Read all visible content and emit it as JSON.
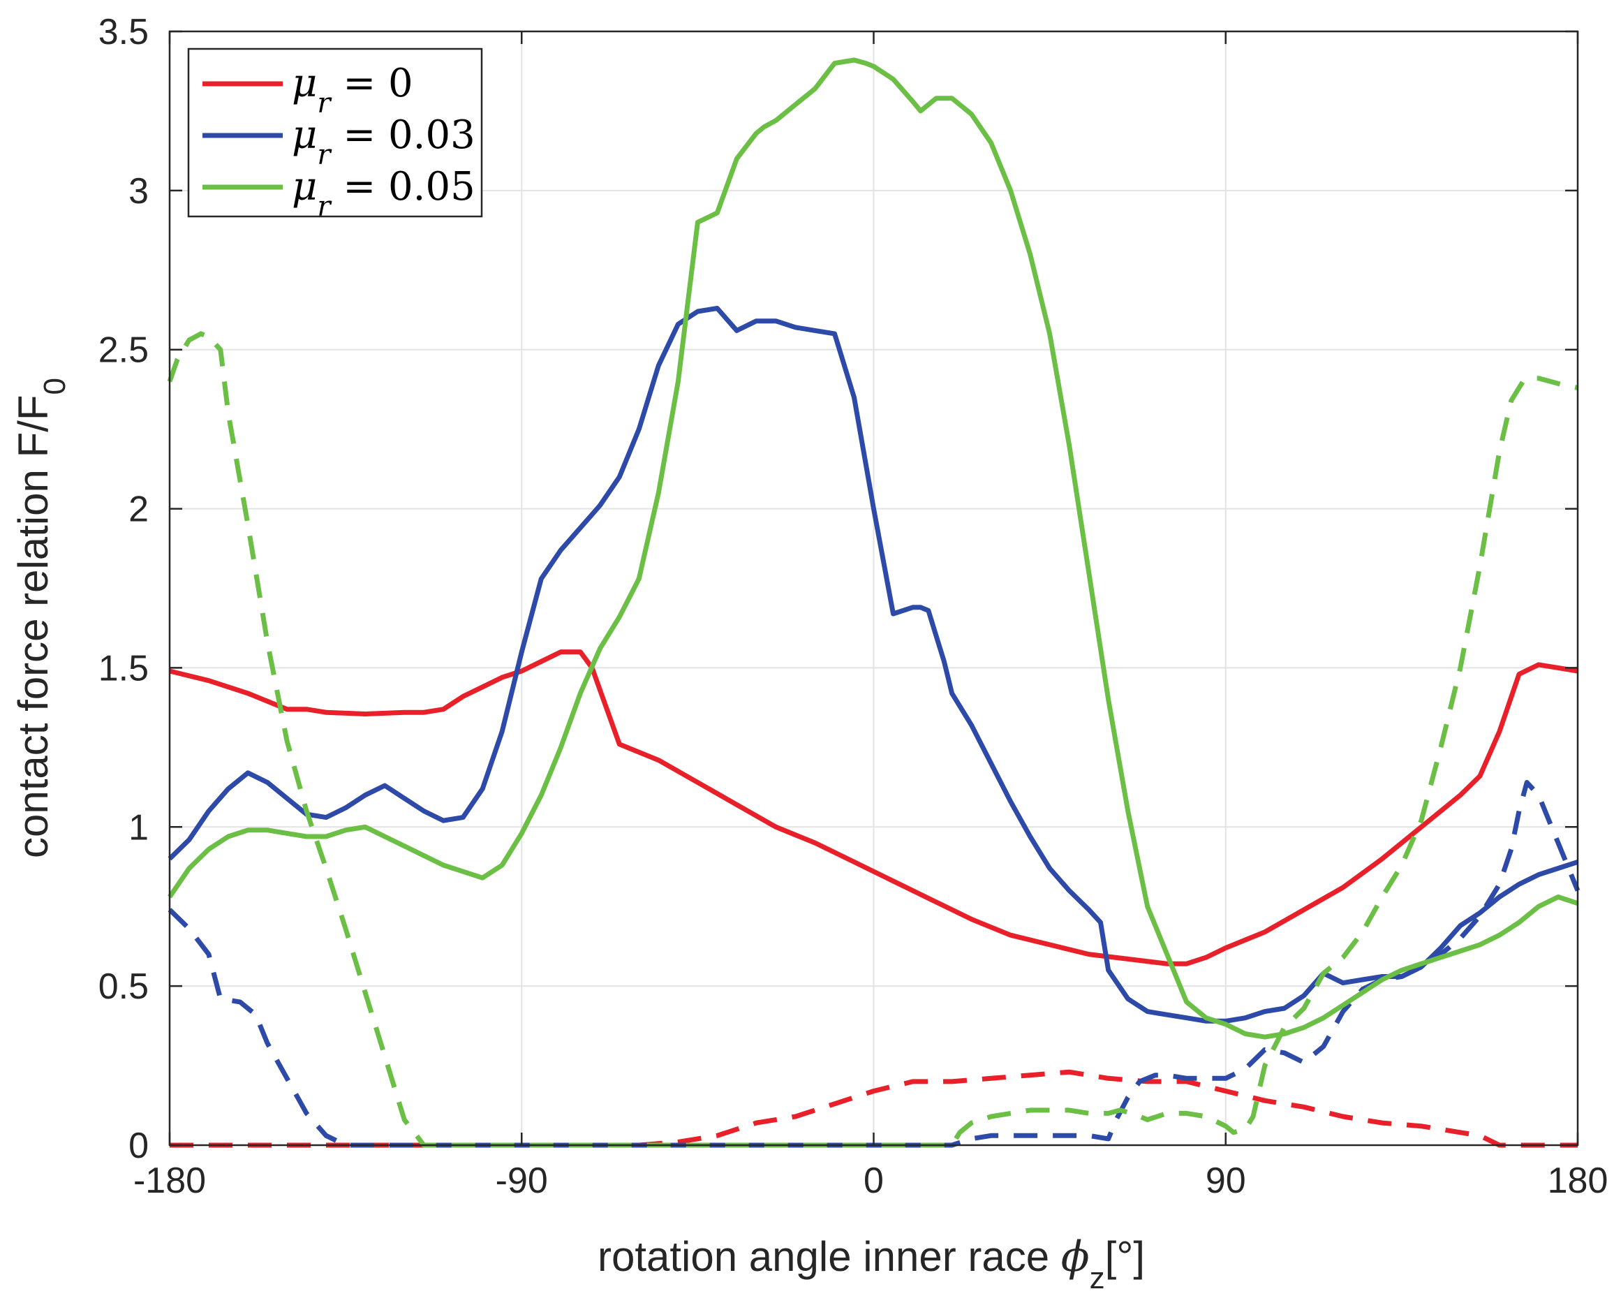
{
  "chart_data": {
    "type": "line",
    "title": "",
    "xlabel": "rotation angle inner race",
    "xlabel_symbol": "ϕ",
    "xlabel_subscript": "z",
    "xlabel_unit": "[°]",
    "ylabel": "contact force relation F/F",
    "ylabel_subscript": "0",
    "xlim": [
      -180,
      180
    ],
    "ylim": [
      0,
      3.5
    ],
    "xticks": [
      -180,
      -90,
      0,
      90,
      180
    ],
    "xtick_labels": [
      "-180",
      "-90",
      "0",
      "90",
      "180"
    ],
    "yticks": [
      0,
      0.5,
      1,
      1.5,
      2,
      2.5,
      3,
      3.5
    ],
    "ytick_labels": [
      "0",
      "0.5",
      "1",
      "1.5",
      "2",
      "2.5",
      "3",
      "3.5"
    ],
    "grid": true,
    "legend_position": "top-left",
    "legend": [
      {
        "label_symbol": "μ",
        "label_sub": "r",
        "label_rest": " = 0",
        "color": "#e8202a"
      },
      {
        "label_symbol": "μ",
        "label_sub": "r",
        "label_rest": " = 0.03",
        "color": "#2e4aa8"
      },
      {
        "label_symbol": "μ",
        "label_sub": "r",
        "label_rest": " = 0.05",
        "color": "#6cbf45"
      }
    ],
    "series": [
      {
        "name": "mu_r = 0 (solid)",
        "color": "#e8202a",
        "dash": false,
        "x": [
          -180,
          -170,
          -160,
          -150,
          -145,
          -140,
          -130,
          -120,
          -115,
          -110,
          -105,
          -100,
          -95,
          -90,
          -85,
          -80,
          -75,
          -72,
          -65,
          -55,
          -45,
          -35,
          -25,
          -15,
          -5,
          5,
          15,
          25,
          35,
          45,
          55,
          65,
          75,
          80,
          85,
          90,
          100,
          110,
          120,
          130,
          140,
          150,
          155,
          160,
          165,
          170,
          175,
          180
        ],
        "y": [
          1.49,
          1.46,
          1.42,
          1.37,
          1.37,
          1.36,
          1.355,
          1.36,
          1.36,
          1.37,
          1.41,
          1.44,
          1.47,
          1.49,
          1.52,
          1.55,
          1.55,
          1.5,
          1.26,
          1.21,
          1.14,
          1.07,
          1.0,
          0.95,
          0.89,
          0.83,
          0.77,
          0.71,
          0.66,
          0.63,
          0.6,
          0.585,
          0.57,
          0.57,
          0.59,
          0.62,
          0.67,
          0.74,
          0.81,
          0.9,
          1.0,
          1.1,
          1.16,
          1.3,
          1.48,
          1.51,
          1.5,
          1.49
        ]
      },
      {
        "name": "mu_r = 0 (dashed)",
        "color": "#e8202a",
        "dash": true,
        "x": [
          -180,
          -60,
          -50,
          -40,
          -30,
          -20,
          -15,
          -10,
          -5,
          0,
          10,
          20,
          30,
          40,
          50,
          60,
          70,
          80,
          90,
          100,
          110,
          120,
          130,
          140,
          150,
          155,
          160,
          165,
          170,
          175,
          180
        ],
        "y": [
          0,
          0,
          0.01,
          0.03,
          0.07,
          0.09,
          0.11,
          0.13,
          0.15,
          0.17,
          0.2,
          0.2,
          0.21,
          0.22,
          0.23,
          0.21,
          0.2,
          0.2,
          0.17,
          0.14,
          0.12,
          0.09,
          0.07,
          0.06,
          0.04,
          0.03,
          0,
          0,
          0,
          0,
          0
        ]
      },
      {
        "name": "mu_r = 0.03 (solid)",
        "color": "#2e4aa8",
        "dash": false,
        "x": [
          -180,
          -175,
          -170,
          -165,
          -160,
          -155,
          -150,
          -145,
          -140,
          -135,
          -130,
          -125,
          -120,
          -115,
          -110,
          -105,
          -100,
          -95,
          -90,
          -85,
          -80,
          -75,
          -70,
          -65,
          -60,
          -55,
          -50,
          -45,
          -40,
          -35,
          -30,
          -25,
          -20,
          -15,
          -10,
          -5,
          0,
          5,
          10,
          12,
          14,
          16,
          18,
          20,
          25,
          30,
          35,
          40,
          45,
          50,
          55,
          58,
          60,
          65,
          70,
          75,
          80,
          85,
          90,
          95,
          100,
          105,
          110,
          115,
          120,
          125,
          130,
          135,
          140,
          145,
          150,
          155,
          160,
          165,
          170,
          175,
          180
        ],
        "y": [
          0.9,
          0.96,
          1.05,
          1.12,
          1.17,
          1.14,
          1.09,
          1.04,
          1.03,
          1.06,
          1.1,
          1.13,
          1.09,
          1.05,
          1.02,
          1.03,
          1.12,
          1.3,
          1.55,
          1.78,
          1.87,
          1.94,
          2.01,
          2.1,
          2.25,
          2.45,
          2.58,
          2.62,
          2.63,
          2.56,
          2.59,
          2.59,
          2.57,
          2.56,
          2.55,
          2.35,
          2.0,
          1.67,
          1.69,
          1.69,
          1.68,
          1.6,
          1.52,
          1.42,
          1.32,
          1.2,
          1.08,
          0.97,
          0.87,
          0.8,
          0.74,
          0.7,
          0.55,
          0.46,
          0.42,
          0.41,
          0.4,
          0.39,
          0.39,
          0.4,
          0.42,
          0.43,
          0.47,
          0.54,
          0.51,
          0.52,
          0.53,
          0.53,
          0.56,
          0.62,
          0.69,
          0.73,
          0.78,
          0.82,
          0.85,
          0.87,
          0.89
        ]
      },
      {
        "name": "mu_r = 0.03 (dashed)",
        "color": "#2e4aa8",
        "dash": true,
        "x": [
          -180,
          -175,
          -170,
          -167,
          -162,
          -158,
          -155,
          -150,
          -145,
          -140,
          -135,
          -40,
          20,
          25,
          30,
          40,
          50,
          55,
          60,
          62,
          65,
          68,
          72,
          75,
          80,
          85,
          90,
          95,
          100,
          105,
          110,
          115,
          120,
          125,
          130,
          135,
          140,
          145,
          150,
          155,
          160,
          163,
          165,
          167,
          170,
          175,
          180
        ],
        "y": [
          0.74,
          0.68,
          0.6,
          0.46,
          0.45,
          0.41,
          0.32,
          0.21,
          0.1,
          0.03,
          0,
          0,
          0,
          0.02,
          0.03,
          0.03,
          0.03,
          0.03,
          0.02,
          0.08,
          0.15,
          0.2,
          0.22,
          0.22,
          0.21,
          0.21,
          0.21,
          0.24,
          0.3,
          0.29,
          0.26,
          0.31,
          0.42,
          0.49,
          0.52,
          0.53,
          0.56,
          0.6,
          0.65,
          0.72,
          0.82,
          0.93,
          1.05,
          1.14,
          1.1,
          0.95,
          0.8
        ]
      },
      {
        "name": "mu_r = 0.05 (solid)",
        "color": "#6cbf45",
        "dash": false,
        "x": [
          -180,
          -175,
          -170,
          -165,
          -160,
          -155,
          -150,
          -145,
          -140,
          -135,
          -130,
          -125,
          -120,
          -115,
          -110,
          -105,
          -100,
          -95,
          -90,
          -85,
          -80,
          -75,
          -70,
          -65,
          -60,
          -55,
          -50,
          -45,
          -40,
          -35,
          -30,
          -28,
          -25,
          -20,
          -15,
          -10,
          -5,
          -2,
          0,
          5,
          10,
          12,
          14,
          16,
          18,
          20,
          25,
          30,
          35,
          40,
          45,
          50,
          55,
          60,
          65,
          70,
          75,
          80,
          85,
          90,
          95,
          100,
          105,
          110,
          115,
          120,
          125,
          130,
          135,
          140,
          145,
          150,
          155,
          160,
          165,
          170,
          175,
          180
        ],
        "y": [
          0.78,
          0.87,
          0.93,
          0.97,
          0.99,
          0.99,
          0.98,
          0.97,
          0.97,
          0.99,
          1.0,
          0.97,
          0.94,
          0.91,
          0.88,
          0.86,
          0.84,
          0.88,
          0.98,
          1.1,
          1.25,
          1.42,
          1.56,
          1.66,
          1.78,
          2.05,
          2.4,
          2.9,
          2.93,
          3.1,
          3.18,
          3.2,
          3.22,
          3.27,
          3.32,
          3.4,
          3.41,
          3.4,
          3.39,
          3.35,
          3.28,
          3.25,
          3.27,
          3.29,
          3.29,
          3.29,
          3.24,
          3.15,
          3.0,
          2.8,
          2.55,
          2.2,
          1.8,
          1.4,
          1.05,
          0.75,
          0.6,
          0.45,
          0.4,
          0.38,
          0.35,
          0.34,
          0.35,
          0.37,
          0.4,
          0.44,
          0.48,
          0.52,
          0.55,
          0.57,
          0.59,
          0.61,
          0.63,
          0.66,
          0.7,
          0.75,
          0.78,
          0.76
        ]
      },
      {
        "name": "mu_r = 0.05 (dashed)",
        "color": "#6cbf45",
        "dash": true,
        "x": [
          -180,
          -178,
          -175,
          -172,
          -170,
          -167,
          -165,
          -160,
          -155,
          -150,
          -145,
          -140,
          -135,
          -130,
          -125,
          -120,
          -115,
          -112,
          20,
          22,
          25,
          30,
          40,
          50,
          55,
          60,
          63,
          66,
          70,
          75,
          80,
          85,
          90,
          92,
          95,
          97,
          100,
          105,
          110,
          115,
          120,
          125,
          130,
          135,
          140,
          145,
          150,
          155,
          160,
          163,
          166,
          168,
          170,
          173,
          176,
          180
        ],
        "y": [
          2.4,
          2.47,
          2.53,
          2.55,
          2.54,
          2.5,
          2.3,
          1.95,
          1.58,
          1.27,
          1.05,
          0.87,
          0.68,
          0.48,
          0.28,
          0.08,
          0,
          0,
          0,
          0.04,
          0.07,
          0.09,
          0.11,
          0.11,
          0.1,
          0.1,
          0.11,
          0.1,
          0.08,
          0.1,
          0.1,
          0.09,
          0.06,
          0.04,
          0.05,
          0.09,
          0.25,
          0.37,
          0.43,
          0.54,
          0.59,
          0.67,
          0.78,
          0.88,
          1.02,
          1.25,
          1.5,
          1.82,
          2.18,
          2.34,
          2.4,
          2.41,
          2.41,
          2.4,
          2.39,
          2.38
        ]
      }
    ]
  }
}
